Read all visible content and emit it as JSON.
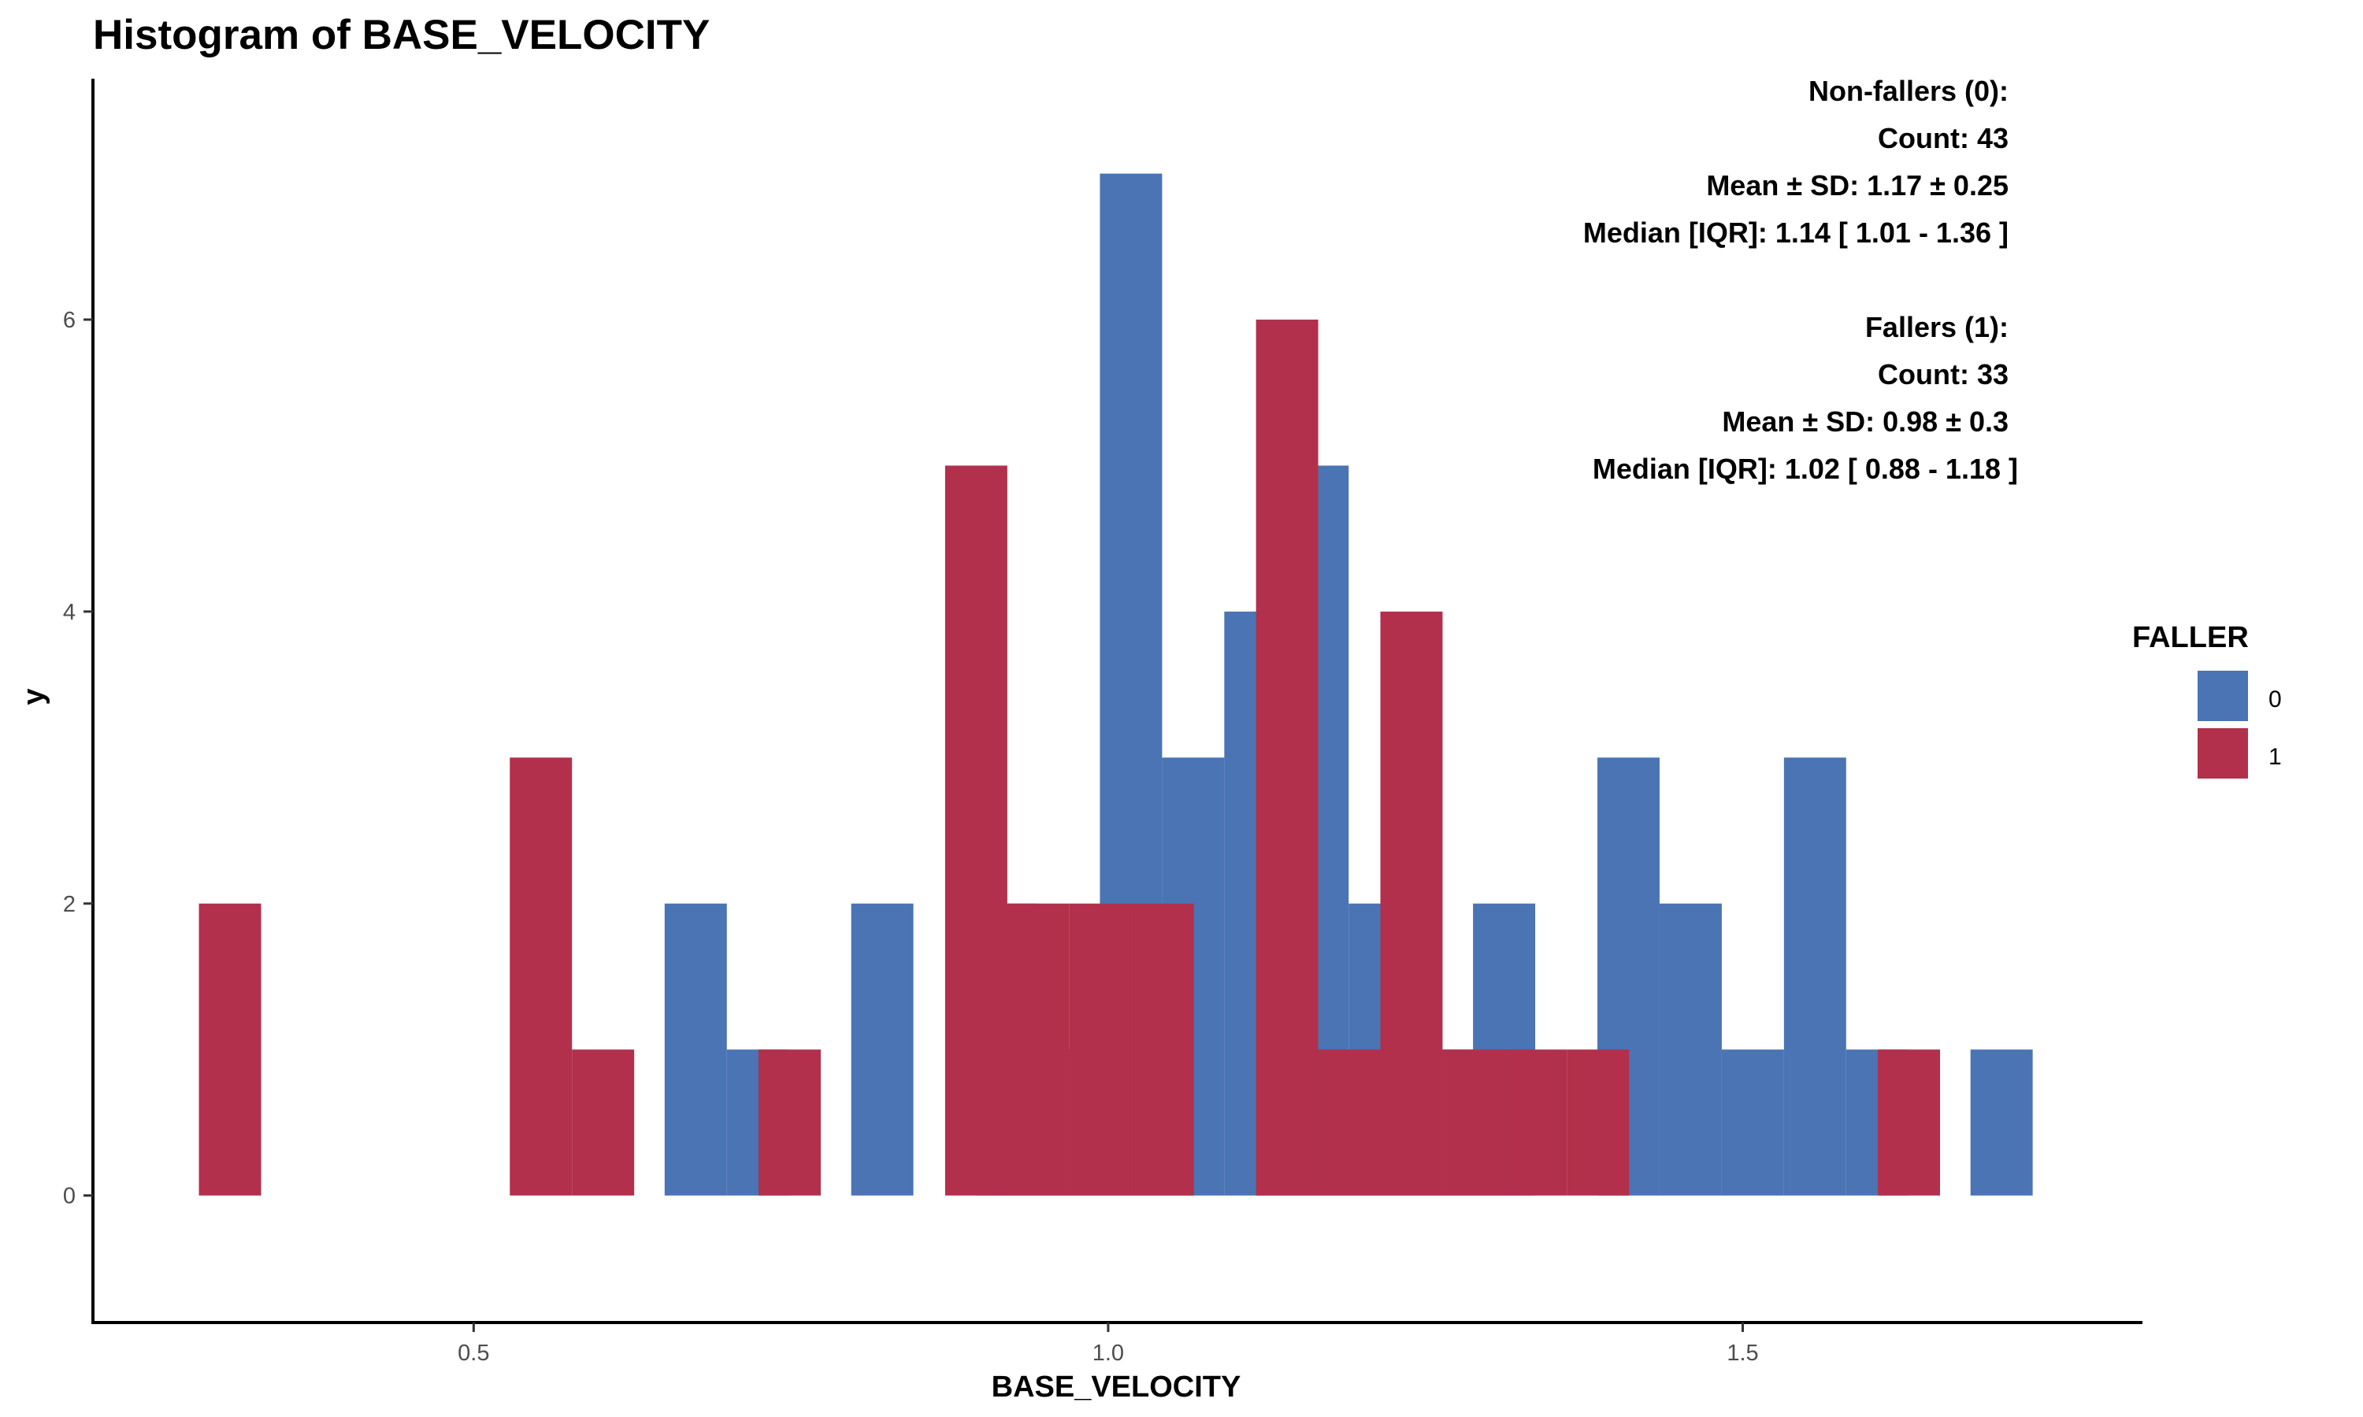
{
  "chart_data": {
    "type": "bar",
    "title": "Histogram of BASE_VELOCITY",
    "xlabel": "BASE_VELOCITY",
    "ylabel": "y",
    "xlim": [
      0.2,
      1.815
    ],
    "ylim": [
      -0.87,
      7.65
    ],
    "x_ticks": [
      "0.5",
      "1.0",
      "1.5"
    ],
    "x_tick_values": [
      0.5,
      1.0,
      1.5
    ],
    "y_ticks": [
      "0",
      "2",
      "4",
      "6"
    ],
    "y_tick_values": [
      0,
      2,
      4,
      6
    ],
    "bin_width": 0.049,
    "grid": false,
    "legend": {
      "title": "FALLER",
      "position": "right",
      "entries": [
        {
          "label": "0",
          "color": "#4a74b3"
        },
        {
          "label": "1",
          "color": "#b2304b"
        }
      ]
    },
    "series": [
      {
        "key": "0",
        "color": "#4a74b3",
        "bins": [
          {
            "x": 0.675,
            "count": 2
          },
          {
            "x": 0.724,
            "count": 1
          },
          {
            "x": 0.822,
            "count": 2
          },
          {
            "x": 0.92,
            "count": 2
          },
          {
            "x": 0.969,
            "count": 1
          },
          {
            "x": 1.018,
            "count": 7
          },
          {
            "x": 1.067,
            "count": 3
          },
          {
            "x": 1.116,
            "count": 4
          },
          {
            "x": 1.165,
            "count": 5
          },
          {
            "x": 1.214,
            "count": 2
          },
          {
            "x": 1.263,
            "count": 1
          },
          {
            "x": 1.312,
            "count": 2
          },
          {
            "x": 1.41,
            "count": 3
          },
          {
            "x": 1.459,
            "count": 2
          },
          {
            "x": 1.508,
            "count": 1
          },
          {
            "x": 1.557,
            "count": 3
          },
          {
            "x": 1.606,
            "count": 1
          },
          {
            "x": 1.704,
            "count": 1
          }
        ]
      },
      {
        "key": "1",
        "color": "#b2304b",
        "bins": [
          {
            "x": 0.308,
            "count": 2
          },
          {
            "x": 0.553,
            "count": 3
          },
          {
            "x": 0.602,
            "count": 1
          },
          {
            "x": 0.749,
            "count": 1
          },
          {
            "x": 0.896,
            "count": 5
          },
          {
            "x": 0.945,
            "count": 2
          },
          {
            "x": 0.994,
            "count": 2
          },
          {
            "x": 1.043,
            "count": 2
          },
          {
            "x": 1.141,
            "count": 6
          },
          {
            "x": 1.19,
            "count": 1
          },
          {
            "x": 1.239,
            "count": 4
          },
          {
            "x": 1.288,
            "count": 1
          },
          {
            "x": 1.337,
            "count": 1
          },
          {
            "x": 1.386,
            "count": 1
          },
          {
            "x": 1.631,
            "count": 1
          }
        ]
      }
    ],
    "annotations": [
      "Non-fallers (0):",
      "Count: 43",
      "Mean ± SD: 1.17 ± 0.25",
      "Median [IQR]: 1.14 [ 1.01 - 1.36 ]",
      "Fallers (1):",
      "Count: 33",
      "Mean ± SD: 0.98 ± 0.3",
      "Median [IQR]: 1.02 [ 0.88 - 1.18 ]"
    ]
  }
}
